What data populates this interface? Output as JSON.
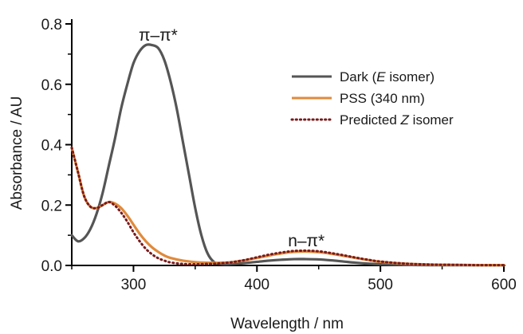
{
  "chart_data": {
    "type": "line",
    "xlabel": "Wavelength / nm",
    "ylabel": "Absorbance / AU",
    "xlim": [
      250,
      600
    ],
    "ylim": [
      0,
      0.8
    ],
    "xticks": [
      "300",
      "400",
      "500",
      "600"
    ],
    "yticks": [
      "0.0",
      "0.2",
      "0.4",
      "0.6",
      "0.8"
    ],
    "grid": false,
    "legend_position": "top-right",
    "series": [
      {
        "name_prefix": "Dark (",
        "name_italic": "E",
        "name_suffix": " isomer)",
        "color": "#555555",
        "style": "solid",
        "x": [
          250,
          255,
          260,
          265,
          270,
          275,
          280,
          285,
          290,
          295,
          300,
          305,
          310,
          315,
          320,
          325,
          330,
          335,
          340,
          345,
          350,
          355,
          360,
          365,
          370,
          375,
          380,
          390,
          400,
          410,
          420,
          430,
          440,
          450,
          460,
          470,
          480,
          490,
          500,
          520,
          540,
          560,
          580,
          600
        ],
        "y": [
          0.1,
          0.08,
          0.09,
          0.12,
          0.17,
          0.24,
          0.33,
          0.42,
          0.52,
          0.6,
          0.67,
          0.71,
          0.73,
          0.73,
          0.72,
          0.68,
          0.61,
          0.52,
          0.41,
          0.3,
          0.19,
          0.1,
          0.04,
          0.012,
          0.005,
          0.004,
          0.005,
          0.008,
          0.012,
          0.016,
          0.019,
          0.021,
          0.021,
          0.02,
          0.017,
          0.013,
          0.009,
          0.006,
          0.004,
          0.002,
          0.001,
          0.001,
          0.001,
          0.001
        ]
      },
      {
        "name_prefix": "PSS (340 nm)",
        "name_italic": "",
        "name_suffix": "",
        "color": "#e08a3c",
        "style": "solid",
        "x": [
          250,
          255,
          260,
          265,
          270,
          275,
          280,
          285,
          290,
          295,
          300,
          305,
          310,
          315,
          320,
          325,
          330,
          340,
          350,
          360,
          370,
          380,
          390,
          400,
          410,
          420,
          430,
          440,
          450,
          460,
          470,
          480,
          490,
          500,
          520,
          540,
          560,
          580,
          600
        ],
        "y": [
          0.39,
          0.31,
          0.23,
          0.195,
          0.19,
          0.2,
          0.21,
          0.205,
          0.19,
          0.165,
          0.135,
          0.105,
          0.08,
          0.06,
          0.045,
          0.033,
          0.025,
          0.016,
          0.011,
          0.009,
          0.009,
          0.011,
          0.017,
          0.025,
          0.033,
          0.04,
          0.045,
          0.046,
          0.044,
          0.039,
          0.032,
          0.025,
          0.018,
          0.012,
          0.006,
          0.003,
          0.002,
          0.001,
          0.001
        ]
      },
      {
        "name_prefix": "Predicted ",
        "name_italic": "Z",
        "name_suffix": " isomer",
        "color": "#7a1a1a",
        "style": "dotted",
        "x": [
          250,
          255,
          260,
          265,
          270,
          275,
          280,
          285,
          290,
          295,
          300,
          305,
          310,
          315,
          320,
          325,
          330,
          340,
          350,
          360,
          370,
          380,
          390,
          400,
          410,
          420,
          430,
          440,
          450,
          460,
          470,
          480,
          490,
          500,
          520,
          540,
          560,
          580,
          600
        ],
        "y": [
          0.39,
          0.31,
          0.23,
          0.195,
          0.19,
          0.2,
          0.21,
          0.198,
          0.175,
          0.145,
          0.11,
          0.08,
          0.055,
          0.037,
          0.024,
          0.016,
          0.01,
          0.005,
          0.004,
          0.005,
          0.007,
          0.011,
          0.018,
          0.027,
          0.036,
          0.043,
          0.048,
          0.049,
          0.047,
          0.041,
          0.034,
          0.026,
          0.019,
          0.013,
          0.006,
          0.003,
          0.002,
          0.001,
          0.001
        ]
      }
    ],
    "annotations": [
      {
        "text": "π–π*",
        "x": 320,
        "y": 0.745
      },
      {
        "text": "n–π*",
        "x": 440,
        "y": 0.063
      }
    ]
  }
}
